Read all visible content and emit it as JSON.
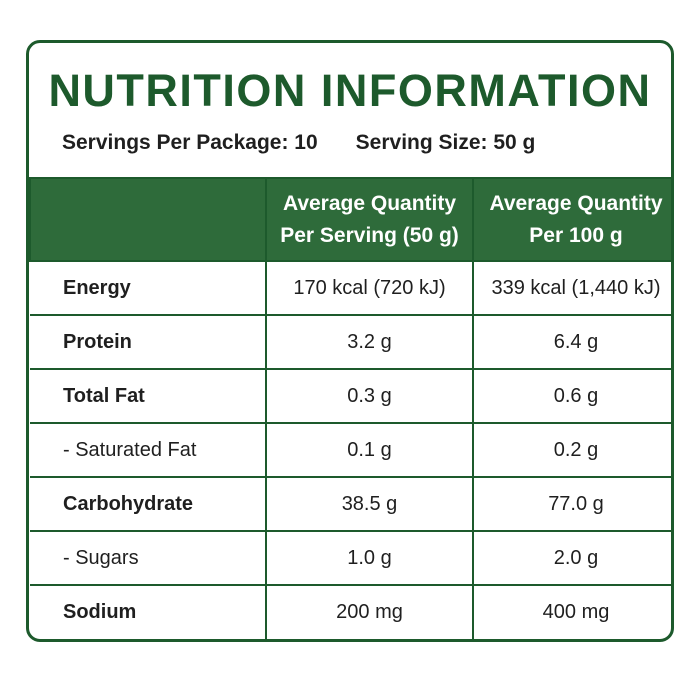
{
  "title": "NUTRITION INFORMATION",
  "servings": {
    "per_package": "Servings Per Package: 10",
    "serving_size": "Serving Size: 50 g"
  },
  "columns": {
    "per_serving_line1": "Average Quantity",
    "per_serving_line2": "Per Serving (50 g)",
    "per_100g_line1": "Average Quantity",
    "per_100g_line2": "Per 100 g"
  },
  "rows": [
    {
      "name": "Energy",
      "per_serving": "170 kcal (720 kJ)",
      "per_100g": "339 kcal (1,440 kJ)"
    },
    {
      "name": "Protein",
      "per_serving": "3.2 g",
      "per_100g": "6.4 g"
    },
    {
      "name": "Total Fat",
      "per_serving": "0.3 g",
      "per_100g": "0.6 g"
    },
    {
      "name": "- Saturated Fat",
      "per_serving": "0.1 g",
      "per_100g": "0.2 g"
    },
    {
      "name": "Carbohydrate",
      "per_serving": "38.5 g",
      "per_100g": "77.0 g"
    },
    {
      "name": "- Sugars",
      "per_serving": "1.0 g",
      "per_100g": "2.0 g"
    },
    {
      "name": "Sodium",
      "per_serving": "200 mg",
      "per_100g": "400 mg"
    }
  ],
  "colors": {
    "brand_green": "#1d5a2c",
    "header_fill": "#2e6b3a",
    "text": "#1f1f1f"
  }
}
